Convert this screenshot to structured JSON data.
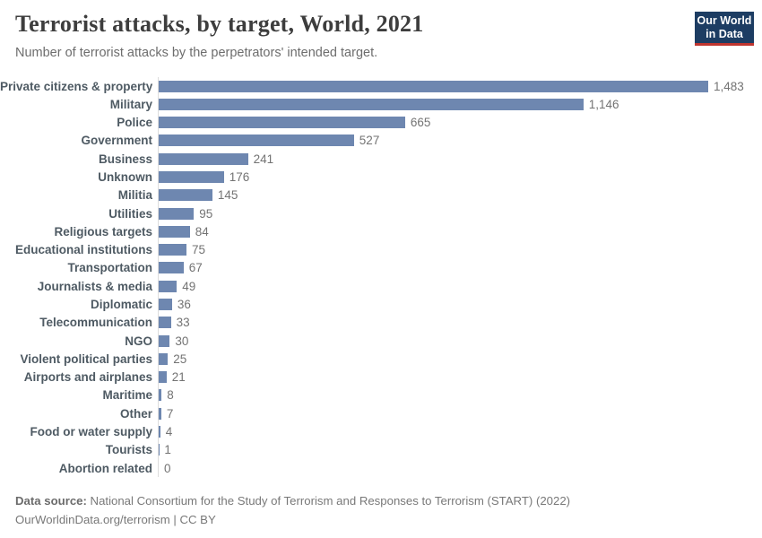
{
  "header": {
    "title": "Terrorist attacks, by target, World, 2021",
    "subtitle": "Number of terrorist attacks by the perpetrators' intended target.",
    "logo": {
      "line1": "Our World",
      "line2": "in Data",
      "bg_color": "#1d3d63",
      "accent_color": "#bf352f"
    }
  },
  "chart_data": {
    "type": "bar",
    "orientation": "horizontal",
    "title": "Terrorist attacks, by target, World, 2021",
    "subtitle": "Number of terrorist attacks by the perpetrators' intended target.",
    "categories": [
      "Private citizens & property",
      "Military",
      "Police",
      "Government",
      "Business",
      "Unknown",
      "Militia",
      "Utilities",
      "Religious targets",
      "Educational institutions",
      "Transportation",
      "Journalists & media",
      "Diplomatic",
      "Telecommunication",
      "NGO",
      "Violent political parties",
      "Airports and airplanes",
      "Maritime",
      "Other",
      "Food or water supply",
      "Tourists",
      "Abortion related"
    ],
    "values": [
      1483,
      1146,
      665,
      527,
      241,
      176,
      145,
      95,
      84,
      75,
      67,
      49,
      36,
      33,
      30,
      25,
      21,
      8,
      7,
      4,
      1,
      0
    ],
    "value_labels": [
      "1,483",
      "1,146",
      "665",
      "527",
      "241",
      "176",
      "145",
      "95",
      "84",
      "75",
      "67",
      "49",
      "36",
      "33",
      "30",
      "25",
      "21",
      "8",
      "7",
      "4",
      "1",
      "0"
    ],
    "xlim": [
      0,
      1483
    ],
    "bar_color": "#6e87b0",
    "axis_color": "#dcdcdc",
    "grid": false,
    "legend": false
  },
  "footer": {
    "data_source_label": "Data source:",
    "data_source_text": " National Consortium for the Study of Terrorism and Responses to Terrorism (START) (2022)",
    "url": "OurWorldinData.org/terrorism",
    "license": " | CC BY"
  }
}
